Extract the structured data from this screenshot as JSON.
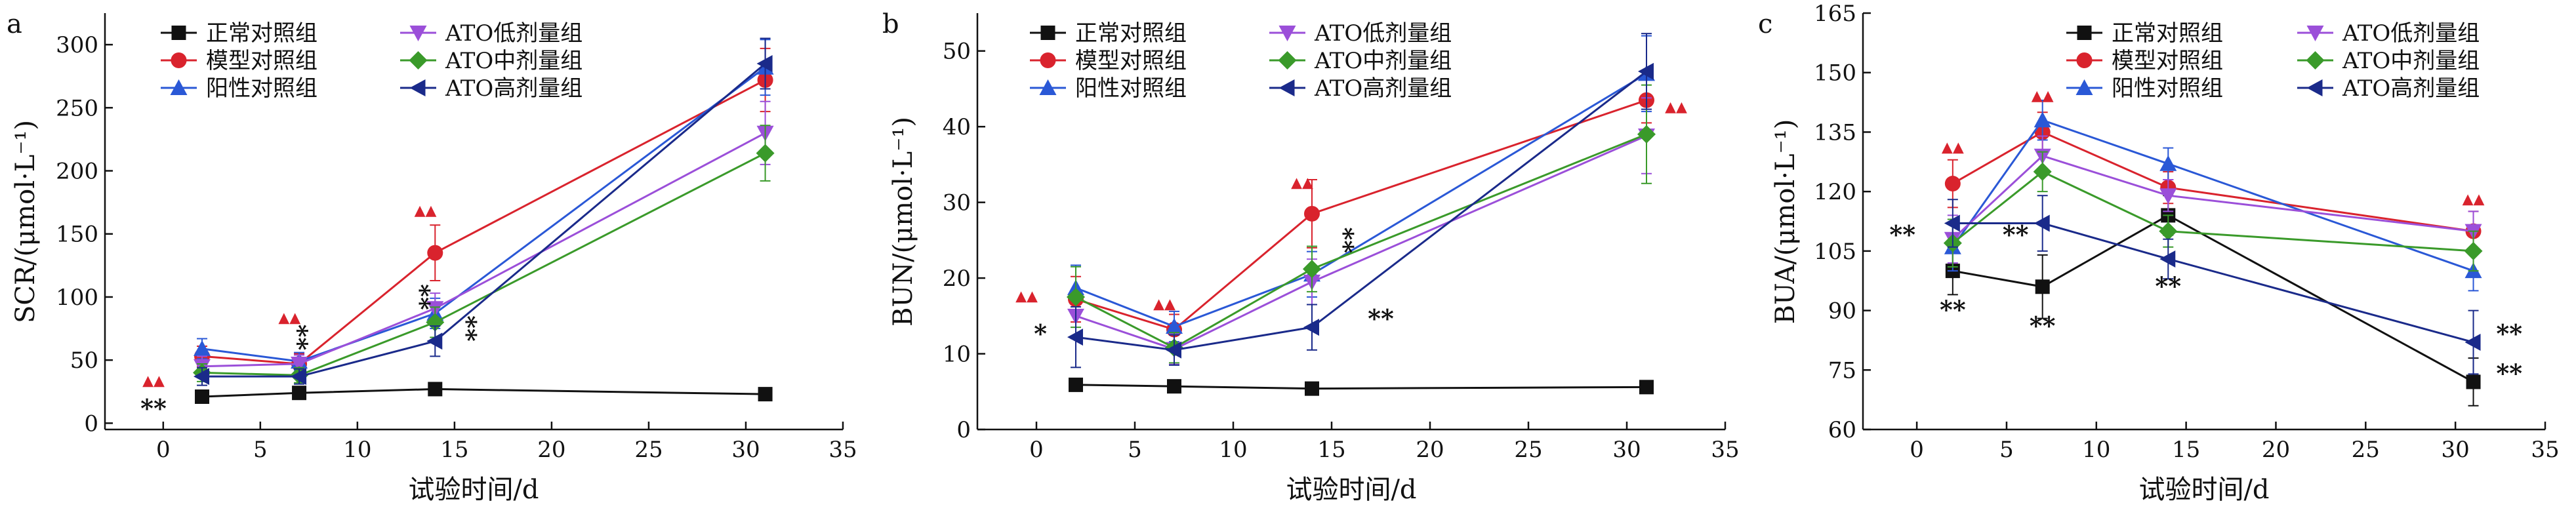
{
  "chart_data": [
    {
      "type": "line",
      "panel": "a",
      "xlabel": "试验时间/d",
      "ylabel": "SCR/(μmol·L⁻¹)",
      "xlim": [
        -3,
        35
      ],
      "ylim": [
        -5,
        325
      ],
      "xticks": [
        0,
        5,
        10,
        15,
        20,
        25,
        30,
        35
      ],
      "yticks": [
        0,
        50,
        100,
        150,
        200,
        250,
        300
      ],
      "x": [
        2,
        7,
        14,
        31
      ],
      "legend_position": "top-left",
      "series": [
        {
          "name": "正常对照组",
          "color": "#111111",
          "marker": "square",
          "values": [
            21,
            24,
            27,
            23
          ],
          "errors": [
            3,
            3,
            3,
            2
          ]
        },
        {
          "name": "模型对照组",
          "color": "#d9232d",
          "marker": "circle",
          "values": [
            53,
            47,
            135,
            272
          ],
          "errors": [
            8,
            8,
            22,
            25
          ]
        },
        {
          "name": "阳性对照组",
          "color": "#2a58d6",
          "marker": "triangle-up",
          "values": [
            59,
            49,
            87,
            282
          ],
          "errors": [
            8,
            7,
            12,
            22
          ]
        },
        {
          "name": "ATO低剂量组",
          "color": "#9b4fd9",
          "marker": "triangle-down",
          "values": [
            45,
            47,
            91,
            230
          ],
          "errors": [
            8,
            7,
            12,
            25
          ]
        },
        {
          "name": "ATO中剂量组",
          "color": "#3a9a2a",
          "marker": "diamond",
          "values": [
            40,
            38,
            80,
            214
          ],
          "errors": [
            7,
            6,
            12,
            22
          ]
        },
        {
          "name": "ATO高剂量组",
          "color": "#1a2a8a",
          "marker": "triangle-left",
          "values": [
            37,
            37,
            65,
            285
          ],
          "errors": [
            7,
            6,
            12,
            20
          ]
        }
      ],
      "annotations": [
        {
          "x": -0.5,
          "y": 30,
          "text": "▲▲",
          "color": "red"
        },
        {
          "x": -0.5,
          "y": 5,
          "text": "**",
          "color": "black"
        },
        {
          "x": 6.5,
          "y": 80,
          "text": "▲▲",
          "color": "red"
        },
        {
          "x": 6.5,
          "y": 68,
          "text": "**",
          "color": "black",
          "vertical": true
        },
        {
          "x": 13.5,
          "y": 165,
          "text": "▲▲",
          "color": "red"
        },
        {
          "x": 12.8,
          "y": 100,
          "text": "**",
          "color": "black",
          "vertical": true
        },
        {
          "x": 15.2,
          "y": 75,
          "text": "**",
          "color": "black",
          "vertical": true
        }
      ]
    },
    {
      "type": "line",
      "panel": "b",
      "xlabel": "试验时间/d",
      "ylabel": "BUN/(μmol·L⁻¹)",
      "xlim": [
        -3,
        35
      ],
      "ylim": [
        0,
        55
      ],
      "xticks": [
        0,
        5,
        10,
        15,
        20,
        25,
        30,
        35
      ],
      "yticks": [
        0,
        10,
        20,
        30,
        40,
        50
      ],
      "x": [
        2,
        7,
        14,
        31
      ],
      "legend_position": "top-left",
      "series": [
        {
          "name": "正常对照组",
          "color": "#111111",
          "marker": "square",
          "values": [
            5.9,
            5.7,
            5.4,
            5.6
          ],
          "errors": [
            0.4,
            0.4,
            0.4,
            0.3
          ]
        },
        {
          "name": "模型对照组",
          "color": "#d9232d",
          "marker": "circle",
          "values": [
            17.2,
            13.2,
            28.5,
            43.5
          ],
          "errors": [
            3,
            2,
            4.5,
            3
          ]
        },
        {
          "name": "阳性对照组",
          "color": "#2a58d6",
          "marker": "triangle-up",
          "values": [
            18.7,
            13.6,
            20.5,
            47.0
          ],
          "errors": [
            3,
            2,
            3,
            5
          ]
        },
        {
          "name": "ATO低剂量组",
          "color": "#9b4fd9",
          "marker": "triangle-down",
          "values": [
            15.0,
            10.6,
            19.5,
            38.8
          ],
          "errors": [
            3,
            2,
            3,
            5
          ]
        },
        {
          "name": "ATO中剂量组",
          "color": "#3a9a2a",
          "marker": "diamond",
          "values": [
            17.5,
            10.8,
            21.2,
            39.0
          ],
          "errors": [
            4,
            2,
            3,
            6.5
          ]
        },
        {
          "name": "ATO高剂量组",
          "color": "#1a2a8a",
          "marker": "triangle-left",
          "values": [
            12.2,
            10.5,
            13.5,
            47.3
          ],
          "errors": [
            4,
            2,
            3,
            5
          ]
        }
      ],
      "annotations": [
        {
          "x": -0.5,
          "y": 17,
          "text": "▲▲",
          "color": "red"
        },
        {
          "x": 6.5,
          "y": 16,
          "text": "▲▲",
          "color": "red"
        },
        {
          "x": 13.5,
          "y": 32,
          "text": "▲▲",
          "color": "red"
        },
        {
          "x": 32.5,
          "y": 42,
          "text": "▲▲",
          "color": "red"
        },
        {
          "x": 0.2,
          "y": 11.5,
          "text": "*",
          "color": "black"
        },
        {
          "x": 15.2,
          "y": 25,
          "text": "**",
          "color": "black",
          "vertical": true
        },
        {
          "x": 17.5,
          "y": 13.5,
          "text": "**",
          "color": "black"
        }
      ]
    },
    {
      "type": "line",
      "panel": "c",
      "xlabel": "试验时间/d",
      "ylabel": "BUA/(μmol·L⁻¹)",
      "xlim": [
        -3,
        35
      ],
      "ylim": [
        60,
        165
      ],
      "xticks": [
        0,
        5,
        10,
        15,
        20,
        25,
        30,
        35
      ],
      "yticks": [
        60,
        75,
        90,
        105,
        120,
        135,
        150,
        165
      ],
      "x": [
        2,
        7,
        14,
        31
      ],
      "legend_position": "top",
      "series": [
        {
          "name": "正常对照组",
          "color": "#111111",
          "marker": "square",
          "values": [
            100,
            96,
            114,
            72
          ],
          "errors": [
            6,
            8,
            5,
            6
          ]
        },
        {
          "name": "模型对照组",
          "color": "#d9232d",
          "marker": "circle",
          "values": [
            122,
            135,
            121,
            110
          ],
          "errors": [
            6,
            5,
            4,
            5
          ]
        },
        {
          "name": "阳性对照组",
          "color": "#2a58d6",
          "marker": "triangle-up",
          "values": [
            106,
            138,
            127,
            100
          ],
          "errors": [
            6,
            5,
            4,
            5
          ]
        },
        {
          "name": "ATO低剂量组",
          "color": "#9b4fd9",
          "marker": "triangle-down",
          "values": [
            108,
            129,
            119,
            110
          ],
          "errors": [
            6,
            5,
            4,
            5
          ]
        },
        {
          "name": "ATO中剂量组",
          "color": "#3a9a2a",
          "marker": "diamond",
          "values": [
            107,
            125,
            110,
            105
          ],
          "errors": [
            6,
            5,
            4,
            5
          ]
        },
        {
          "name": "ATO高剂量组",
          "color": "#1a2a8a",
          "marker": "triangle-left",
          "values": [
            112,
            112,
            103,
            82
          ],
          "errors": [
            6,
            7,
            5,
            8
          ]
        }
      ],
      "annotations": [
        {
          "x": 2,
          "y": 130,
          "text": "▲▲",
          "color": "red"
        },
        {
          "x": 7,
          "y": 143,
          "text": "▲▲",
          "color": "red"
        },
        {
          "x": 31,
          "y": 117,
          "text": "▲▲",
          "color": "red"
        },
        {
          "x": -0.8,
          "y": 107,
          "text": "**",
          "color": "black"
        },
        {
          "x": 2,
          "y": 88,
          "text": "**",
          "color": "black"
        },
        {
          "x": 5.5,
          "y": 107,
          "text": "**",
          "color": "black"
        },
        {
          "x": 7,
          "y": 84,
          "text": "**",
          "color": "black"
        },
        {
          "x": 14,
          "y": 94,
          "text": "**",
          "color": "black"
        },
        {
          "x": 33,
          "y": 82,
          "text": "**",
          "color": "black"
        },
        {
          "x": 33,
          "y": 72,
          "text": "**",
          "color": "black"
        }
      ]
    }
  ]
}
